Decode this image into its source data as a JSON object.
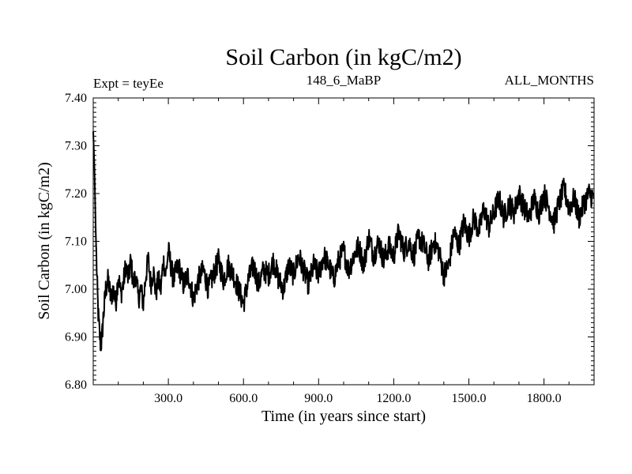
{
  "chart_data": {
    "type": "line",
    "title": "Soil Carbon (in kgC/m2)",
    "subtitle_left": "Expt = teyEe",
    "subtitle_center": "148_6_MaBP",
    "subtitle_right": "ALL_MONTHS",
    "xlabel": "Time (in years since start)",
    "ylabel": "Soil Carbon (in kgC/m2)",
    "xlim": [
      0,
      2000
    ],
    "ylim": [
      6.8,
      7.4
    ],
    "x_ticks": [
      {
        "value": 300,
        "label": "300.0"
      },
      {
        "value": 600,
        "label": "600.0"
      },
      {
        "value": 900,
        "label": "900.0"
      },
      {
        "value": 1200,
        "label": "1200.0"
      },
      {
        "value": 1500,
        "label": "1500.0"
      },
      {
        "value": 1800,
        "label": "1800.0"
      }
    ],
    "y_ticks": [
      {
        "value": 6.8,
        "label": "6.80"
      },
      {
        "value": 6.9,
        "label": "6.90"
      },
      {
        "value": 7.0,
        "label": "7.00"
      },
      {
        "value": 7.1,
        "label": "7.10"
      },
      {
        "value": 7.2,
        "label": "7.20"
      },
      {
        "value": 7.3,
        "label": "7.30"
      },
      {
        "value": 7.4,
        "label": "7.40"
      }
    ],
    "series": [
      {
        "name": "Soil Carbon",
        "color": "#000000",
        "x": [
          0,
          5,
          10,
          15,
          20,
          25,
          30,
          35,
          40,
          45,
          50,
          60,
          70,
          80,
          90,
          100,
          110,
          120,
          130,
          140,
          150,
          160,
          170,
          180,
          190,
          200,
          210,
          220,
          230,
          240,
          250,
          260,
          270,
          280,
          290,
          300,
          320,
          340,
          360,
          380,
          400,
          420,
          440,
          460,
          480,
          500,
          520,
          540,
          560,
          580,
          600,
          620,
          640,
          660,
          680,
          700,
          720,
          740,
          760,
          780,
          800,
          820,
          840,
          860,
          880,
          900,
          920,
          940,
          960,
          980,
          1000,
          1020,
          1040,
          1060,
          1080,
          1100,
          1120,
          1140,
          1160,
          1180,
          1200,
          1220,
          1240,
          1260,
          1280,
          1300,
          1320,
          1340,
          1360,
          1380,
          1400,
          1420,
          1440,
          1460,
          1480,
          1500,
          1520,
          1540,
          1560,
          1580,
          1600,
          1620,
          1640,
          1660,
          1680,
          1700,
          1720,
          1740,
          1760,
          1780,
          1800,
          1820,
          1840,
          1860,
          1880,
          1900,
          1920,
          1940,
          1960,
          1980,
          2000
        ],
        "values": [
          7.33,
          7.25,
          7.12,
          7.02,
          6.95,
          6.91,
          6.88,
          6.9,
          6.94,
          6.97,
          7.0,
          7.02,
          6.98,
          7.0,
          6.97,
          7.03,
          6.99,
          7.01,
          7.05,
          7.02,
          7.06,
          7.01,
          7.03,
          6.98,
          7.0,
          6.97,
          7.03,
          7.06,
          7.01,
          7.04,
          6.99,
          7.02,
          7.0,
          7.06,
          7.03,
          7.08,
          7.02,
          7.05,
          7.01,
          7.03,
          6.98,
          7.02,
          7.04,
          7.0,
          7.03,
          7.06,
          7.02,
          7.05,
          7.03,
          7.0,
          6.97,
          7.02,
          7.05,
          7.01,
          7.04,
          7.03,
          7.06,
          7.02,
          7.0,
          7.05,
          7.03,
          7.07,
          7.04,
          7.01,
          7.05,
          7.03,
          7.07,
          7.05,
          7.02,
          7.06,
          7.08,
          7.04,
          7.07,
          7.09,
          7.05,
          7.11,
          7.07,
          7.1,
          7.06,
          7.09,
          7.07,
          7.12,
          7.08,
          7.1,
          7.07,
          7.11,
          7.09,
          7.06,
          7.1,
          7.08,
          7.03,
          7.05,
          7.12,
          7.09,
          7.14,
          7.11,
          7.15,
          7.12,
          7.17,
          7.13,
          7.16,
          7.19,
          7.15,
          7.18,
          7.16,
          7.2,
          7.17,
          7.15,
          7.19,
          7.16,
          7.2,
          7.17,
          7.14,
          7.18,
          7.21,
          7.17,
          7.19,
          7.15,
          7.18,
          7.2,
          7.19
        ]
      }
    ]
  }
}
